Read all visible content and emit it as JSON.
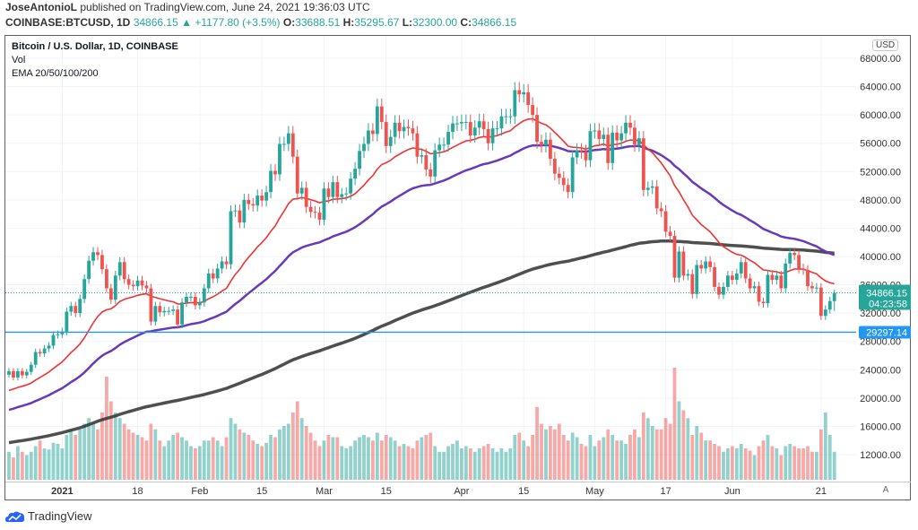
{
  "header": {
    "author": "JoseAntonioL",
    "published_text": "published on TradingView.com, June 24, 2021 19:36:03 UTC",
    "symbol": "COINBASE:BTCUSD, 1D",
    "last_price": "34866.15",
    "change_arrow": "▲",
    "change": "+1177.80 (+3.5%)",
    "o_label": "O:",
    "o": "33688.51",
    "h_label": "H:",
    "h": "35295.67",
    "l_label": "L:",
    "l": "32300.00",
    "c_label": "C:",
    "c": "34866.15"
  },
  "legend": {
    "title": "Bitcoin / U.S. Dollar, 1D, COINBASE",
    "vol": "Vol",
    "ema": "EMA 20/50/100/200"
  },
  "axis": {
    "currency": "USD",
    "auto_label": "A",
    "price_badge": "34866.15",
    "countdown": "04:23:58",
    "hline_badge": "29297.14"
  },
  "footer": {
    "brand": "TradingView"
  },
  "colors": {
    "up": "#26a69a",
    "down": "#ef5350",
    "ema20": "#f23230",
    "ema50": "#673ab7",
    "ema200": "#3c3c3c",
    "hline": "#2196f3"
  },
  "chart_data": {
    "type": "candlestick",
    "start_date": "2020-12-20",
    "first_open": 23300,
    "last_candle": {
      "o": 33688.51,
      "h": 35295.67,
      "l": 32300.0,
      "c": 34866.15
    },
    "closes": [
      23800,
      22900,
      23800,
      23200,
      23700,
      24700,
      26500,
      26300,
      27000,
      27400,
      28900,
      29000,
      29400,
      32200,
      33000,
      32000,
      34000,
      36800,
      39400,
      40600,
      40200,
      38200,
      35500,
      33900,
      37300,
      39200,
      36800,
      36000,
      35800,
      36600,
      35900,
      35500,
      30800,
      33000,
      32100,
      32300,
      32300,
      32500,
      30400,
      33500,
      34300,
      34300,
      33100,
      33500,
      35500,
      37600,
      36900,
      38300,
      39300,
      38900,
      46400,
      46500,
      44800,
      48000,
      47400,
      47200,
      48600,
      47900,
      49100,
      52100,
      51600,
      55900,
      55900,
      57400,
      54100,
      48900,
      49700,
      47000,
      46300,
      46200,
      45200,
      49600,
      48400,
      50500,
      48400,
      48800,
      48900,
      51000,
      52400,
      54900,
      55900,
      57800,
      57300,
      61200,
      59000,
      55600,
      56900,
      58900,
      57700,
      58300,
      58100,
      57400,
      54100,
      54300,
      52300,
      51300,
      55000,
      55800,
      55800,
      57600,
      58800,
      58800,
      59000,
      59000,
      57100,
      58200,
      59100,
      58000,
      56000,
      58100,
      58100,
      59800,
      59800,
      59800,
      63500,
      62900,
      63200,
      61400,
      60000,
      56200,
      55700,
      56500,
      53800,
      51700,
      51100,
      50100,
      49100,
      54000,
      55000,
      54800,
      53600,
      57700,
      57800,
      56600,
      57200,
      53200,
      57500,
      56400,
      57400,
      58900,
      58200,
      55800,
      56700,
      49400,
      49700,
      49900,
      46800,
      46400,
      43500,
      42900,
      37000,
      40700,
      37300,
      37500,
      34700,
      38800,
      38300,
      39300,
      38500,
      35700,
      34600,
      35700,
      37300,
      36700,
      37600,
      39200,
      36900,
      35500,
      35800,
      33600,
      33400,
      37400,
      36700,
      37300,
      35500,
      39000,
      40500,
      40200,
      38300,
      38100,
      35800,
      35500,
      35600,
      31600,
      32500,
      33700,
      34866.15
    ],
    "volume": [
      25,
      20,
      30,
      25,
      22,
      25,
      30,
      35,
      28,
      27,
      33,
      32,
      28,
      40,
      45,
      40,
      45,
      50,
      55,
      50,
      45,
      60,
      92,
      70,
      60,
      55,
      50,
      45,
      42,
      40,
      38,
      35,
      50,
      45,
      35,
      30,
      35,
      40,
      42,
      38,
      35,
      30,
      28,
      30,
      35,
      35,
      38,
      35,
      30,
      38,
      55,
      50,
      45,
      42,
      40,
      35,
      32,
      30,
      33,
      40,
      38,
      45,
      48,
      50,
      60,
      70,
      55,
      48,
      42,
      35,
      30,
      35,
      40,
      38,
      38,
      30,
      28,
      30,
      35,
      38,
      40,
      38,
      35,
      42,
      35,
      40,
      38,
      35,
      30,
      32,
      30,
      28,
      35,
      38,
      40,
      42,
      30,
      25,
      25,
      30,
      32,
      35,
      28,
      30,
      28,
      25,
      28,
      30,
      32,
      28,
      25,
      28,
      25,
      28,
      40,
      42,
      35,
      30,
      40,
      65,
      50,
      45,
      48,
      45,
      50,
      40,
      35,
      42,
      38,
      32,
      30,
      40,
      30,
      35,
      38,
      45,
      40,
      35,
      35,
      32,
      40,
      45,
      38,
      60,
      55,
      48,
      45,
      45,
      55,
      50,
      100,
      70,
      62,
      55,
      40,
      48,
      42,
      35,
      35,
      32,
      30,
      25,
      28,
      30,
      28,
      32,
      28,
      26,
      22,
      30,
      35,
      40,
      30,
      28,
      22,
      30,
      32,
      30,
      28,
      28,
      30,
      25,
      25,
      45,
      60,
      40,
      25
    ],
    "ema_seed": {
      "ema20": 20800,
      "ema50": 18100,
      "ema200": 13600
    },
    "ema_periods": {
      "ema20": 20,
      "ema50": 50,
      "ema200": 200
    },
    "horizontal_line": 29297.14,
    "ylim": [
      10000,
      70000
    ],
    "price_ticks": [
      "68000.00",
      "64000.00",
      "60000.00",
      "56000.00",
      "52000.00",
      "48000.00",
      "44000.00",
      "40000.00",
      "36000.00",
      "32000.00",
      "28000.00",
      "24000.00",
      "20000.00",
      "16000.00",
      "12000.00"
    ],
    "price_tick_values": [
      68000,
      64000,
      60000,
      56000,
      52000,
      48000,
      44000,
      40000,
      36000,
      32000,
      28000,
      24000,
      20000,
      16000,
      12000
    ],
    "time_ticks": [
      {
        "label": "2021",
        "day": 12,
        "bold": true
      },
      {
        "label": "18",
        "day": 29
      },
      {
        "label": "Feb",
        "day": 43
      },
      {
        "label": "15",
        "day": 57
      },
      {
        "label": "Mar",
        "day": 71
      },
      {
        "label": "15",
        "day": 85
      },
      {
        "label": "Apr",
        "day": 102
      },
      {
        "label": "15",
        "day": 116
      },
      {
        "label": "May",
        "day": 132
      },
      {
        "label": "17",
        "day": 148
      },
      {
        "label": "Jun",
        "day": 163
      },
      {
        "label": "21",
        "day": 183
      }
    ]
  }
}
